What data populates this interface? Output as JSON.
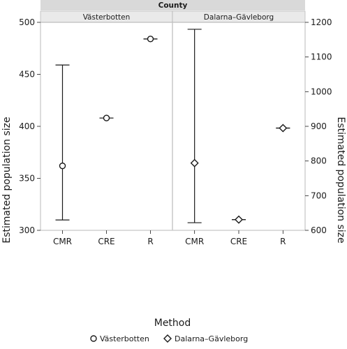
{
  "chart_data": {
    "type": "scatter",
    "facet_title": "County",
    "xlabel": "Method",
    "categories": [
      "CMR",
      "CRE",
      "R"
    ],
    "left_axis": {
      "label": "Estimated population size",
      "ylim": [
        300,
        500
      ],
      "ticks": [
        300,
        350,
        400,
        450,
        500
      ]
    },
    "right_axis": {
      "label": "Estimated population size",
      "ylim": [
        600,
        1200
      ],
      "ticks": [
        600,
        700,
        800,
        900,
        1000,
        1100,
        1200
      ]
    },
    "panels": [
      {
        "name": "Västerbotten",
        "axis": "left",
        "marker": "circle",
        "points": [
          {
            "x": "CMR",
            "y": 362,
            "low": 310,
            "high": 459
          },
          {
            "x": "CRE",
            "y": 408,
            "low": 408,
            "high": 408
          },
          {
            "x": "R",
            "y": 484,
            "low": 484,
            "high": 484
          }
        ]
      },
      {
        "name": "Dalarna–Gävleborg",
        "axis": "right",
        "marker": "diamond",
        "points": [
          {
            "x": "CMR",
            "y": 794,
            "low": 622,
            "high": 1180
          },
          {
            "x": "CRE",
            "y": 631,
            "low": 631,
            "high": 631
          },
          {
            "x": "R",
            "y": 895,
            "low": 895,
            "high": 895
          }
        ]
      }
    ],
    "legend": {
      "position": "bottom",
      "entries": [
        {
          "label": "Västerbotten",
          "marker": "circle"
        },
        {
          "label": "Dalarna–Gävleborg",
          "marker": "diamond"
        }
      ]
    },
    "colors": {
      "strip": "#d9d9d9",
      "frame": "#a8a8a8",
      "divider": "#c8c8c8",
      "ink": "#1a1a1a"
    }
  }
}
